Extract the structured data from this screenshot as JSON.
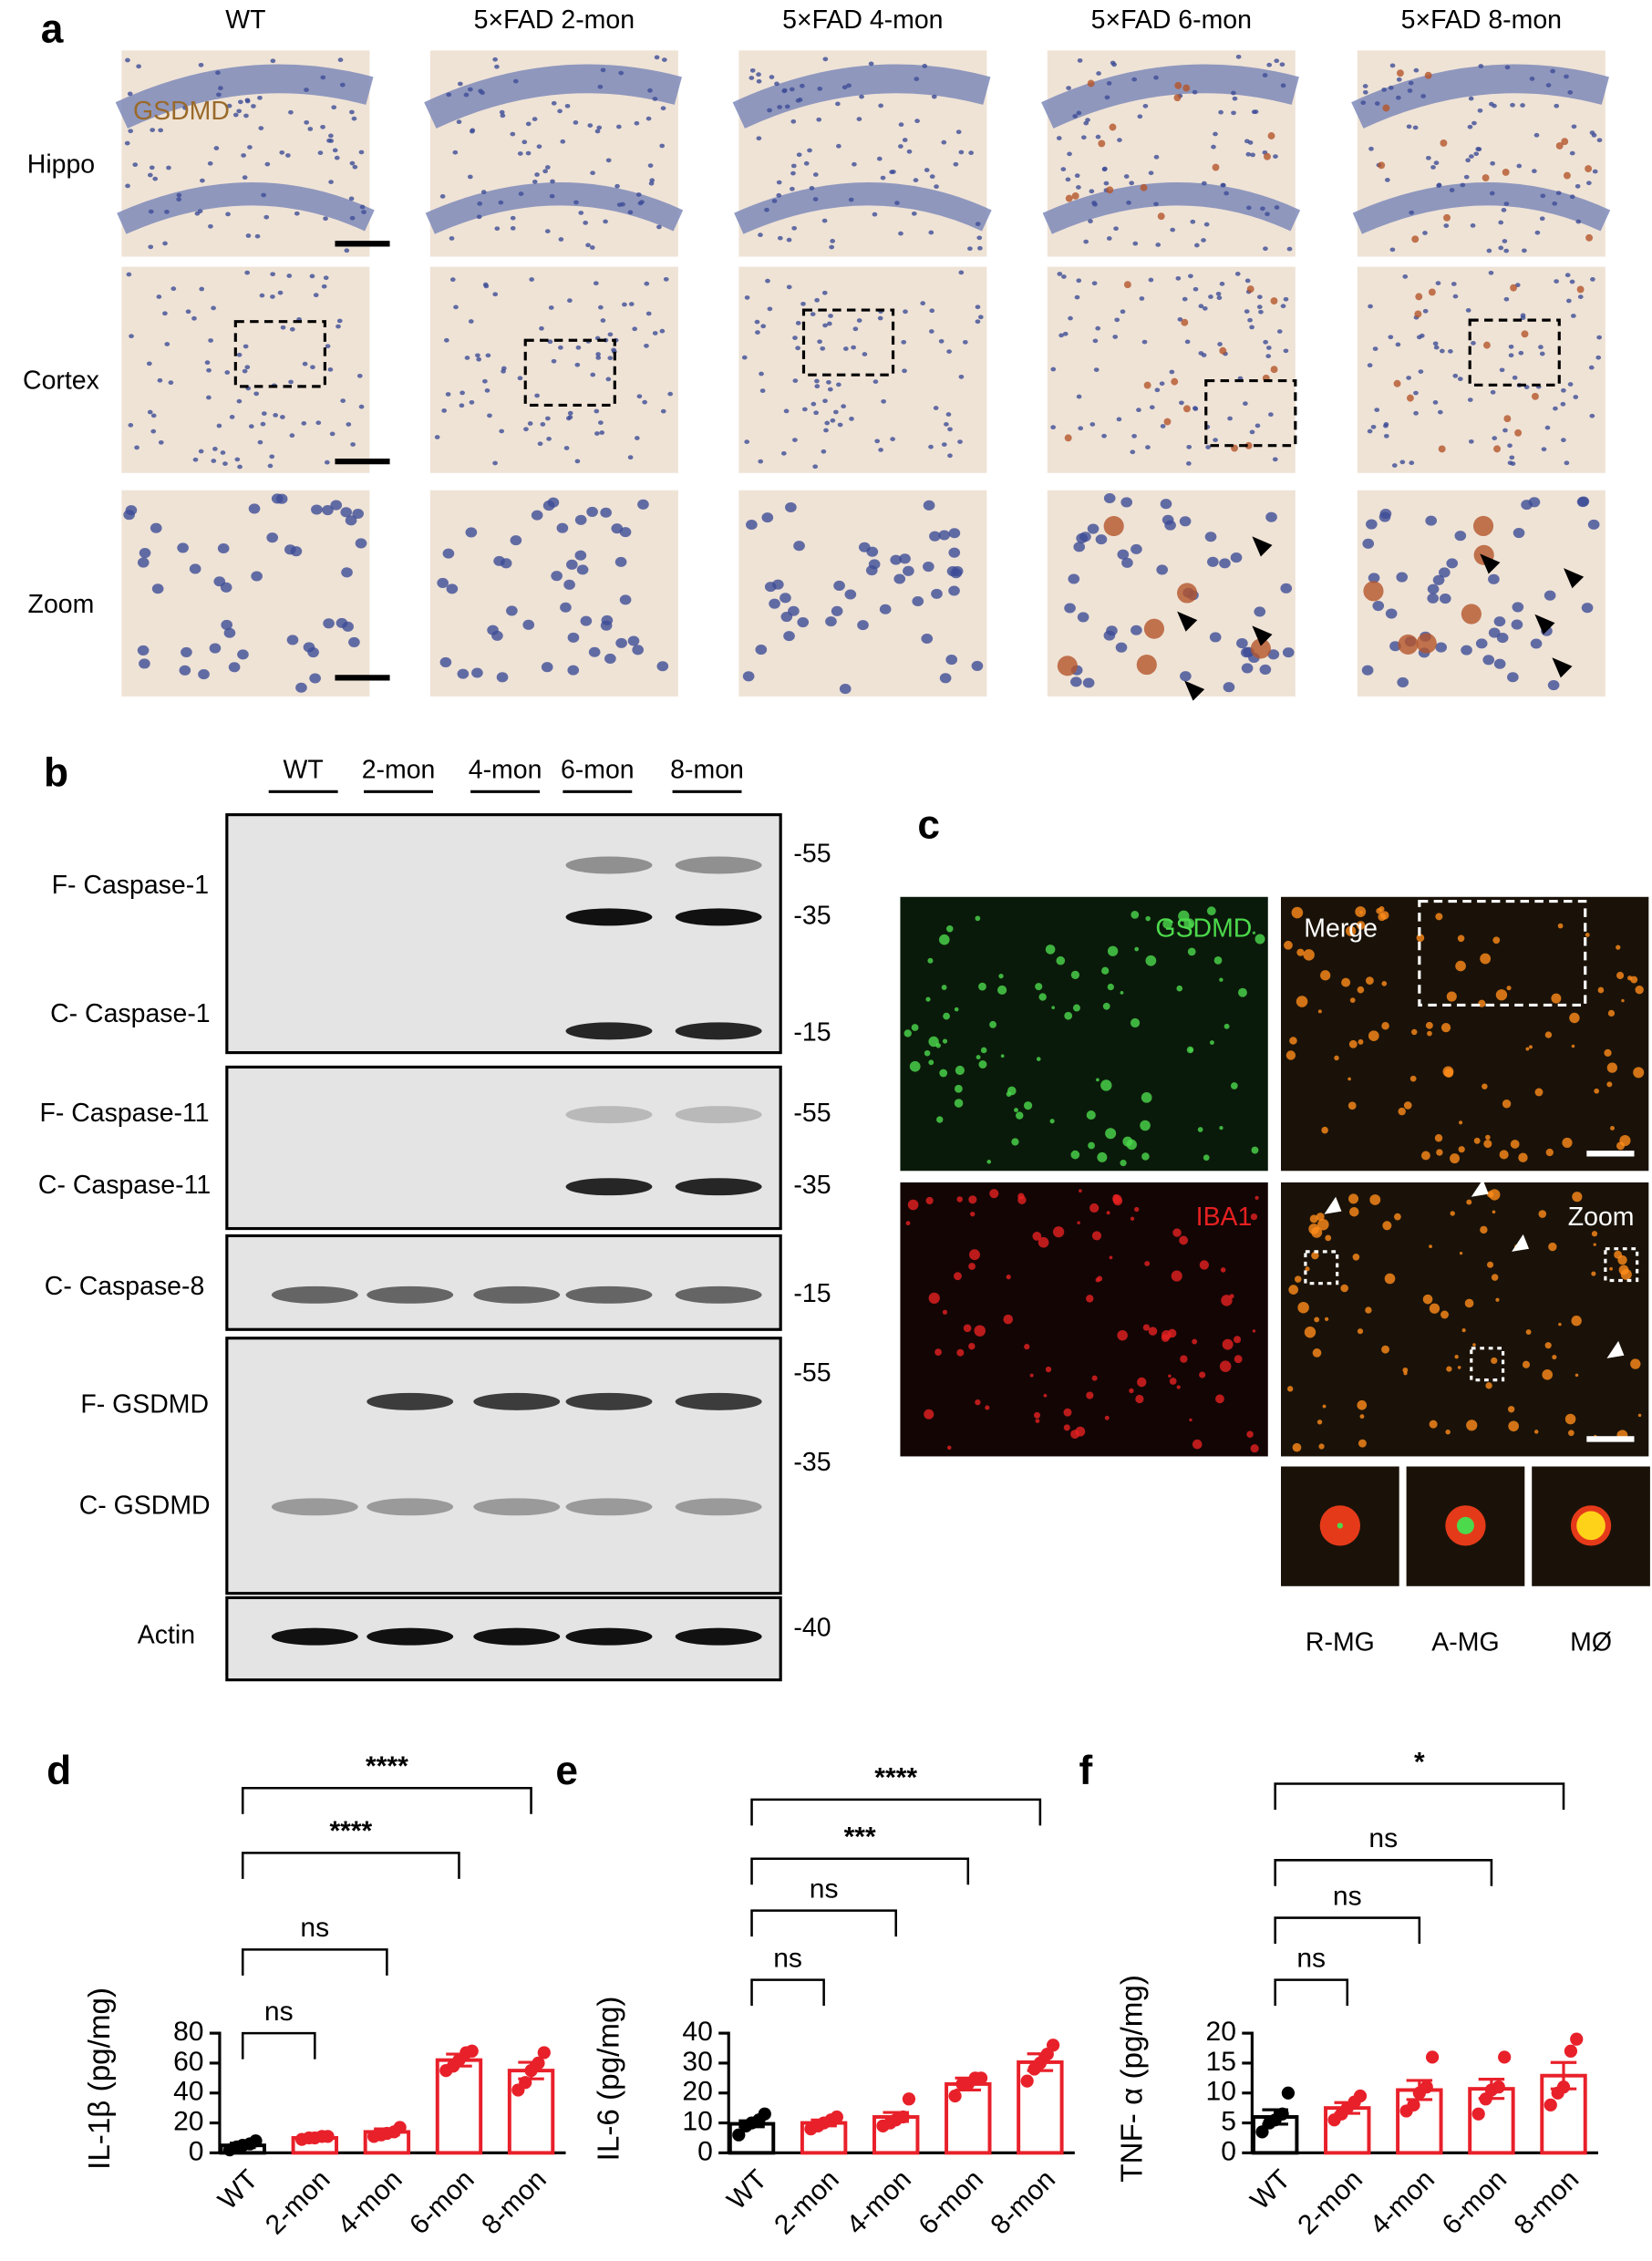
{
  "panel_a": {
    "label": "a",
    "stain": "GSDMD",
    "columns": [
      "WT",
      "5×FAD 2-mon",
      "5×FAD 4-mon",
      "5×FAD 6-mon",
      "5×FAD 8-mon"
    ],
    "rows": [
      "Hippo",
      "Cortex",
      "Zoom"
    ]
  },
  "panel_b": {
    "label": "b",
    "lanes": [
      "WT",
      "2-mon",
      "4-mon",
      "6-mon",
      "8-mon"
    ],
    "blots": [
      {
        "labels": [
          "F- Caspase-1",
          "C- Caspase-1"
        ],
        "markers": [
          "-55",
          "-35",
          "-15"
        ]
      },
      {
        "labels": [
          "F- Caspase-11",
          "C- Caspase-11"
        ],
        "markers": [
          "-55",
          "-35"
        ]
      },
      {
        "labels": [
          "C- Caspase-8"
        ],
        "markers": [
          "-15"
        ]
      },
      {
        "labels": [
          "F- GSDMD",
          "C- GSDMD"
        ],
        "markers": [
          "-55",
          "-35"
        ]
      },
      {
        "labels": [
          "Actin"
        ],
        "markers": [
          "-40"
        ]
      }
    ]
  },
  "panel_c": {
    "label": "c",
    "channels": [
      "GSDMD",
      "Merge",
      "IBA1",
      "Zoom"
    ],
    "cells": [
      "R-MG",
      "A-MG",
      "MØ"
    ]
  },
  "chart_data": [
    {
      "type": "bar",
      "label": "d",
      "ylabel": "IL-1β (pg/mg)",
      "categories": [
        "WT",
        "2-mon",
        "4-mon",
        "6-mon",
        "8-mon"
      ],
      "values": [
        5,
        10,
        14,
        62,
        55
      ],
      "errors": [
        1.5,
        1,
        2,
        4,
        5.5
      ],
      "points": [
        [
          2,
          4,
          5,
          6,
          8
        ],
        [
          9,
          10,
          10,
          11,
          11
        ],
        [
          11,
          12,
          13,
          14,
          17
        ],
        [
          55,
          58,
          62,
          67,
          68
        ],
        [
          42,
          47,
          55,
          60,
          67
        ]
      ],
      "colors": [
        "#000000",
        "#e8202a",
        "#e8202a",
        "#e8202a",
        "#e8202a"
      ],
      "ylim": [
        0,
        80
      ],
      "yticks": [
        0,
        20,
        40,
        60,
        80
      ],
      "comparisons": [
        {
          "from": 0,
          "to": 1,
          "label": "ns"
        },
        {
          "from": 0,
          "to": 2,
          "label": "ns"
        },
        {
          "from": 0,
          "to": 3,
          "label": "****"
        },
        {
          "from": 0,
          "to": 4,
          "label": "****"
        }
      ]
    },
    {
      "type": "bar",
      "label": "e",
      "ylabel": "IL-6 (pg/mg)",
      "categories": [
        "WT",
        "2-mon",
        "4-mon",
        "6-mon",
        "8-mon"
      ],
      "values": [
        9.7,
        10,
        12,
        23,
        30.3
      ],
      "errors": [
        1,
        1,
        1.5,
        2,
        2.8
      ],
      "points": [
        [
          6,
          9,
          10,
          11,
          13
        ],
        [
          8,
          9,
          10,
          11,
          12
        ],
        [
          9,
          10,
          11,
          12,
          18
        ],
        [
          19,
          23,
          23,
          25,
          25
        ],
        [
          24,
          28,
          30,
          33,
          36
        ]
      ],
      "colors": [
        "#000000",
        "#e8202a",
        "#e8202a",
        "#e8202a",
        "#e8202a"
      ],
      "ylim": [
        0,
        40
      ],
      "yticks": [
        0,
        10,
        20,
        30,
        40
      ],
      "comparisons": [
        {
          "from": 0,
          "to": 1,
          "label": "ns"
        },
        {
          "from": 0,
          "to": 2,
          "label": "ns"
        },
        {
          "from": 0,
          "to": 3,
          "label": "***"
        },
        {
          "from": 0,
          "to": 4,
          "label": "****"
        }
      ]
    },
    {
      "type": "bar",
      "label": "f",
      "ylabel": "TNF- α (pg/mg)",
      "categories": [
        "WT",
        "2-mon",
        "4-mon",
        "6-mon",
        "8-mon"
      ],
      "values": [
        6,
        7.5,
        10.5,
        10.7,
        12.9
      ],
      "errors": [
        1.2,
        0.9,
        1.6,
        1.6,
        2.2
      ],
      "points": [
        [
          3.5,
          5,
          5.5,
          6.5,
          10
        ],
        [
          5.5,
          6.5,
          7.5,
          8.5,
          9.5
        ],
        [
          7,
          8,
          10,
          11,
          16
        ],
        [
          6.5,
          9,
          10.5,
          11,
          16
        ],
        [
          8,
          10,
          11,
          17,
          19
        ]
      ],
      "colors": [
        "#000000",
        "#e8202a",
        "#e8202a",
        "#e8202a",
        "#e8202a"
      ],
      "ylim": [
        0,
        20
      ],
      "yticks": [
        0,
        5,
        10,
        15,
        20
      ],
      "comparisons": [
        {
          "from": 0,
          "to": 1,
          "label": "ns"
        },
        {
          "from": 0,
          "to": 2,
          "label": "ns"
        },
        {
          "from": 0,
          "to": 3,
          "label": "ns"
        },
        {
          "from": 0,
          "to": 4,
          "label": "*"
        }
      ]
    }
  ]
}
